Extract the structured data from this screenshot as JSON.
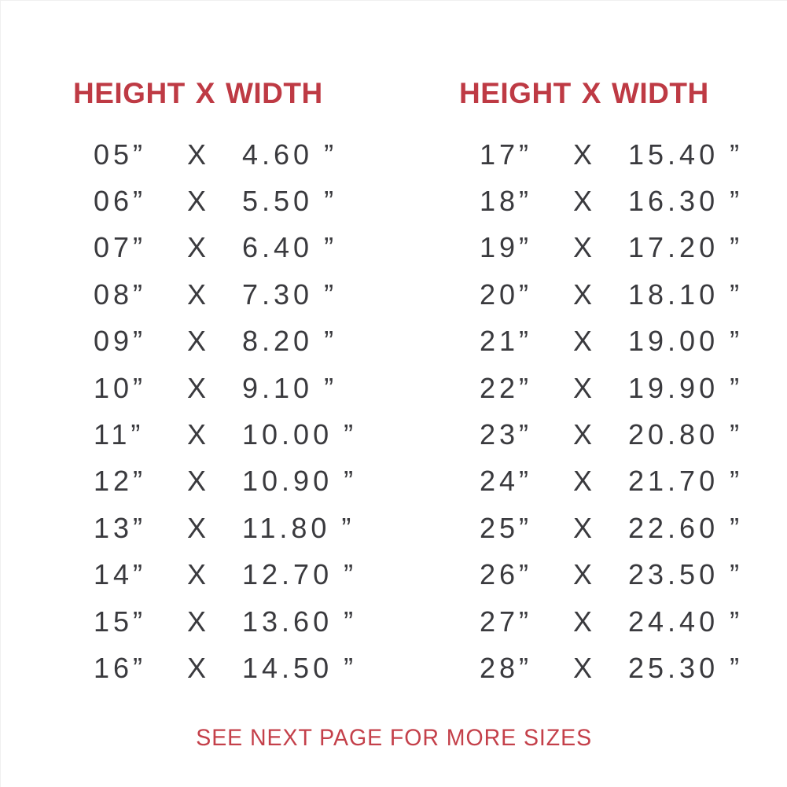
{
  "page": {
    "background": "#ffffff",
    "accent_color": "#BE3A44",
    "text_color": "#3A3A3E"
  },
  "separator": "X",
  "unit": "”",
  "left_table": {
    "header": {
      "col1": "HEIGHT",
      "sep": "X",
      "col2": "WIDTH"
    },
    "rows": [
      {
        "h": "05”",
        "w": "4.60"
      },
      {
        "h": "06”",
        "w": "5.50"
      },
      {
        "h": "07”",
        "w": "6.40"
      },
      {
        "h": "08”",
        "w": "7.30"
      },
      {
        "h": "09”",
        "w": "8.20"
      },
      {
        "h": "10”",
        "w": "9.10"
      },
      {
        "h": "11”",
        "w": "10.00"
      },
      {
        "h": "12”",
        "w": "10.90"
      },
      {
        "h": "13”",
        "w": "11.80"
      },
      {
        "h": "14”",
        "w": "12.70"
      },
      {
        "h": "15”",
        "w": "13.60"
      },
      {
        "h": "16”",
        "w": "14.50"
      }
    ]
  },
  "right_table": {
    "header": {
      "col1": "HEIGHT",
      "sep": "X",
      "col2": "WIDTH"
    },
    "rows": [
      {
        "h": "17”",
        "w": "15.40"
      },
      {
        "h": "18”",
        "w": "16.30"
      },
      {
        "h": "19”",
        "w": "17.20"
      },
      {
        "h": "20”",
        "w": "18.10"
      },
      {
        "h": "21”",
        "w": "19.00"
      },
      {
        "h": "22”",
        "w": "19.90"
      },
      {
        "h": "23”",
        "w": "20.80"
      },
      {
        "h": "24”",
        "w": "21.70"
      },
      {
        "h": "25”",
        "w": "22.60"
      },
      {
        "h": "26”",
        "w": "23.50"
      },
      {
        "h": "27”",
        "w": "24.40"
      },
      {
        "h": "28”",
        "w": "25.30"
      }
    ]
  },
  "footer": {
    "note": "SEE NEXT PAGE FOR MORE SIZES"
  }
}
